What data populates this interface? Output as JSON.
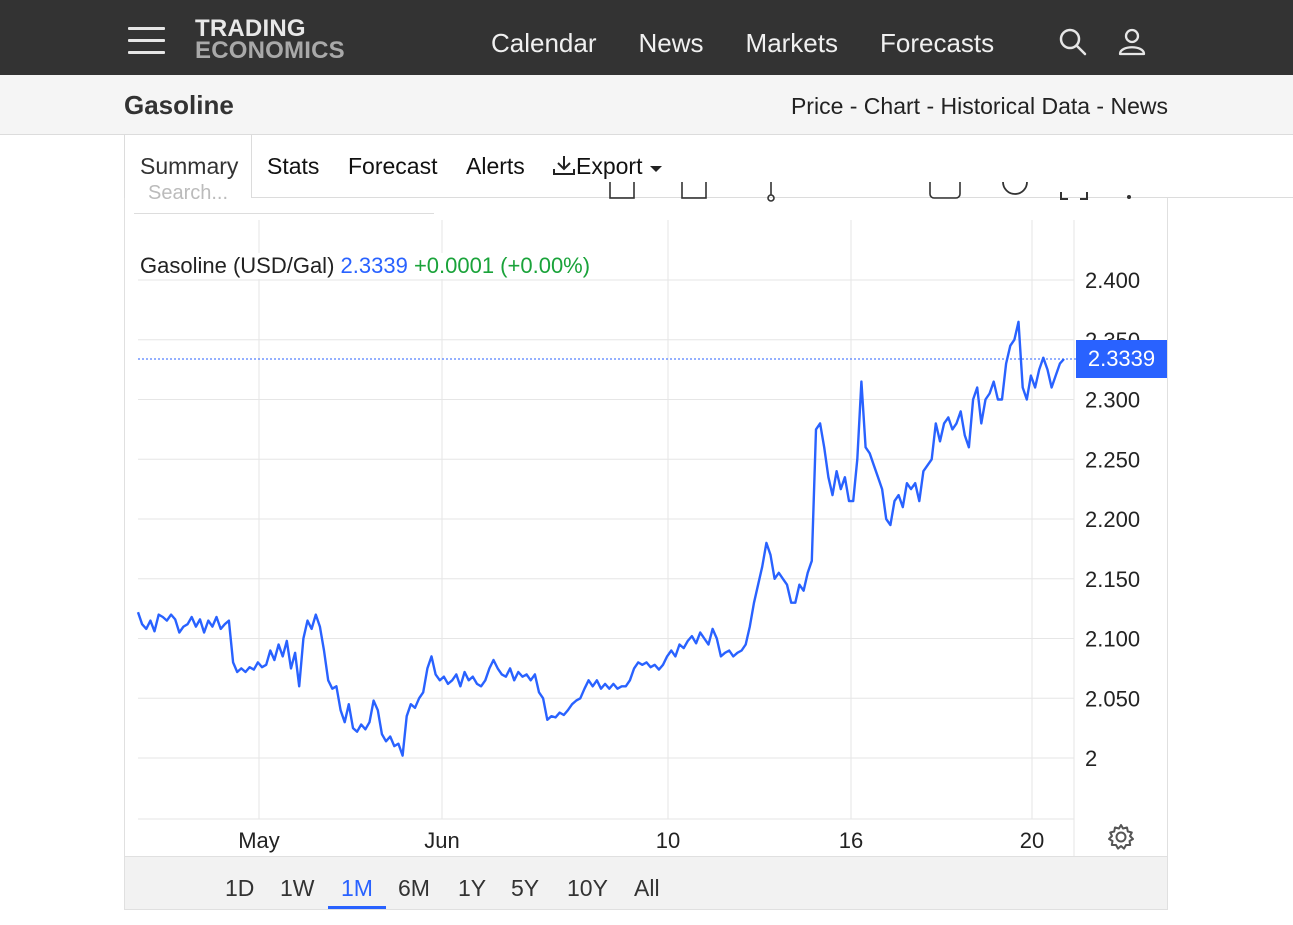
{
  "brand": {
    "line1": "TRADING",
    "line2": "ECONOMICS"
  },
  "nav": {
    "links": [
      "Calendar",
      "News",
      "Markets",
      "Forecasts"
    ],
    "icons": [
      "search-icon",
      "user-icon",
      "menu-icon"
    ]
  },
  "header": {
    "title": "Gasoline",
    "subnav": "Price - Chart - Historical Data - News"
  },
  "tabs": [
    "Summary",
    "Stats",
    "Forecast",
    "Alerts",
    "Export"
  ],
  "search": {
    "placeholder": "Search..."
  },
  "legend": {
    "name": "Gasoline (USD/Gal)",
    "price": "2.3339",
    "change": "+0.0001 (+0.00%)"
  },
  "price_tag": "2.3339",
  "ranges": [
    "1D",
    "1W",
    "1M",
    "6M",
    "1Y",
    "5Y",
    "10Y",
    "All"
  ],
  "active_range": "1M",
  "colors": {
    "line": "#2962ff",
    "positive": "#1aa33a",
    "nav_bg": "#333333"
  },
  "chart_data": {
    "type": "line",
    "title": "",
    "xlabel": "",
    "ylabel": "",
    "x_tick_labels": [
      "May",
      "Jun",
      "10",
      "16",
      "20"
    ],
    "y_tick_labels": [
      "2",
      "2.050",
      "2.100",
      "2.150",
      "2.200",
      "2.250",
      "2.300",
      "2.350",
      "2.400"
    ],
    "ylim": [
      1.95,
      2.45
    ],
    "grid": true,
    "last_value": 2.3339,
    "series": [
      {
        "values": [
          2.122,
          2.112,
          2.108,
          2.115,
          2.106,
          2.12,
          2.118,
          2.115,
          2.12,
          2.116,
          2.105,
          2.11,
          2.112,
          2.118,
          2.11,
          2.116,
          2.105,
          2.115,
          2.11,
          2.118,
          2.108,
          2.112,
          2.115,
          2.08,
          2.072,
          2.075,
          2.072,
          2.076,
          2.074,
          2.08,
          2.076,
          2.078,
          2.09,
          2.082,
          2.095,
          2.085,
          2.098,
          2.075,
          2.088,
          2.06,
          2.1,
          2.115,
          2.108,
          2.12,
          2.11,
          2.09,
          2.065,
          2.058,
          2.06,
          2.04,
          2.03,
          2.045,
          2.025,
          2.022,
          2.028,
          2.024,
          2.03,
          2.048,
          2.04,
          2.02,
          2.014,
          2.018,
          2.01,
          2.012,
          2.002,
          2.035,
          2.045,
          2.042,
          2.05,
          2.055,
          2.075,
          2.085,
          2.07,
          2.065,
          2.068,
          2.062,
          2.065,
          2.07,
          2.06,
          2.072,
          2.065,
          2.068,
          2.062,
          2.06,
          2.065,
          2.075,
          2.082,
          2.075,
          2.07,
          2.068,
          2.075,
          2.065,
          2.072,
          2.068,
          2.07,
          2.065,
          2.07,
          2.055,
          2.05,
          2.032,
          2.035,
          2.034,
          2.038,
          2.036,
          2.04,
          2.045,
          2.048,
          2.05,
          2.058,
          2.065,
          2.06,
          2.065,
          2.058,
          2.062,
          2.058,
          2.062,
          2.058,
          2.06,
          2.06,
          2.065,
          2.075,
          2.08,
          2.078,
          2.08,
          2.076,
          2.078,
          2.074,
          2.078,
          2.085,
          2.09,
          2.085,
          2.095,
          2.092,
          2.098,
          2.102,
          2.096,
          2.105,
          2.1,
          2.095,
          2.108,
          2.1,
          2.085,
          2.088,
          2.09,
          2.085,
          2.088,
          2.09,
          2.095,
          2.11,
          2.13,
          2.145,
          2.16,
          2.18,
          2.17,
          2.15,
          2.155,
          2.15,
          2.145,
          2.13,
          2.13,
          2.145,
          2.14,
          2.155,
          2.165,
          2.275,
          2.28,
          2.26,
          2.235,
          2.22,
          2.24,
          2.225,
          2.235,
          2.215,
          2.215,
          2.25,
          2.315,
          2.26,
          2.255,
          2.245,
          2.235,
          2.225,
          2.2,
          2.195,
          2.215,
          2.22,
          2.21,
          2.23,
          2.225,
          2.23,
          2.215,
          2.24,
          2.245,
          2.25,
          2.28,
          2.265,
          2.28,
          2.285,
          2.275,
          2.28,
          2.29,
          2.27,
          2.26,
          2.3,
          2.31,
          2.28,
          2.3,
          2.305,
          2.315,
          2.3,
          2.3,
          2.33,
          2.345,
          2.35,
          2.365,
          2.31,
          2.3,
          2.32,
          2.31,
          2.325,
          2.335,
          2.325,
          2.31,
          2.32,
          2.33,
          2.3339
        ]
      }
    ]
  }
}
